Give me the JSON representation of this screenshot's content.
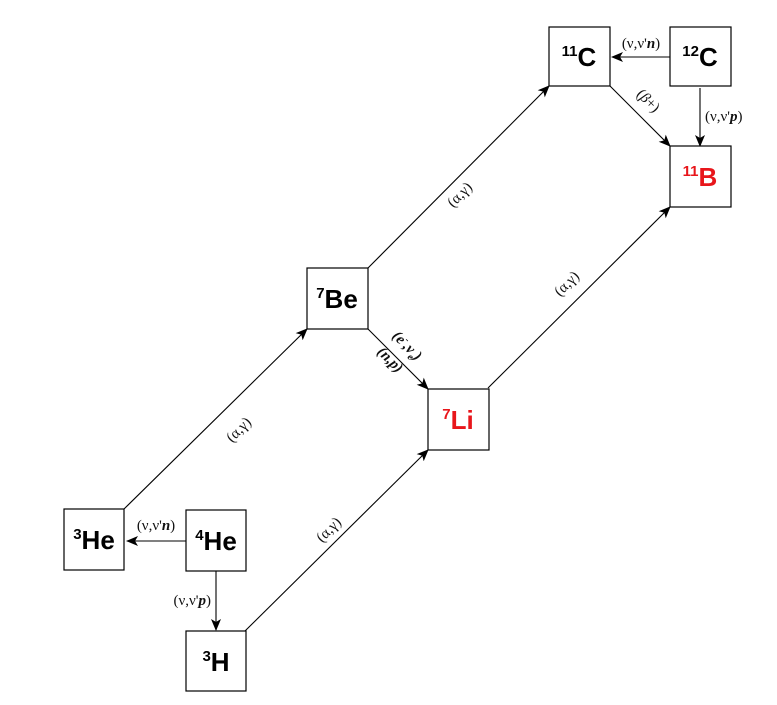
{
  "colors": {
    "default": "#000000",
    "highlight": "#e8161b"
  },
  "nodes": [
    {
      "id": "C11",
      "name": "node-c11",
      "mass": "11",
      "symbol": "C",
      "highlight": false
    },
    {
      "id": "C12",
      "name": "node-c12",
      "mass": "12",
      "symbol": "C",
      "highlight": false
    },
    {
      "id": "B11",
      "name": "node-b11",
      "mass": "11",
      "symbol": "B",
      "highlight": true
    },
    {
      "id": "Be7",
      "name": "node-be7",
      "mass": "7",
      "symbol": "Be",
      "highlight": false
    },
    {
      "id": "Li7",
      "name": "node-li7",
      "mass": "7",
      "symbol": "Li",
      "highlight": true
    },
    {
      "id": "He3",
      "name": "node-he3",
      "mass": "3",
      "symbol": "He",
      "highlight": false
    },
    {
      "id": "He4",
      "name": "node-he4",
      "mass": "4",
      "symbol": "He",
      "highlight": false
    },
    {
      "id": "H3",
      "name": "node-h3",
      "mass": "3",
      "symbol": "H",
      "highlight": false
    }
  ],
  "edges": [
    {
      "id": "e1",
      "from": "C12",
      "to": "C11",
      "label": "(ν,ν'n)"
    },
    {
      "id": "e2",
      "from": "C12",
      "to": "B11",
      "label": "(ν,ν'p)"
    },
    {
      "id": "e3",
      "from": "C11",
      "to": "B11",
      "label": "(β+)"
    },
    {
      "id": "e4",
      "from": "Be7",
      "to": "C11",
      "label": "(α,γ)"
    },
    {
      "id": "e5",
      "from": "Li7",
      "to": "B11",
      "label": "(α,γ)"
    },
    {
      "id": "e6",
      "from": "Be7",
      "to": "Li7",
      "label_top": "(e-,νe)",
      "label_bottom": "(n,p)"
    },
    {
      "id": "e7",
      "from": "He3",
      "to": "Be7",
      "label": "(α,γ)"
    },
    {
      "id": "e8",
      "from": "H3",
      "to": "Li7",
      "label": "(α,γ)"
    },
    {
      "id": "e9",
      "from": "He4",
      "to": "He3",
      "label": "(ν,ν'n)"
    },
    {
      "id": "e10",
      "from": "He4",
      "to": "H3",
      "label": "(ν,ν'p)"
    }
  ]
}
